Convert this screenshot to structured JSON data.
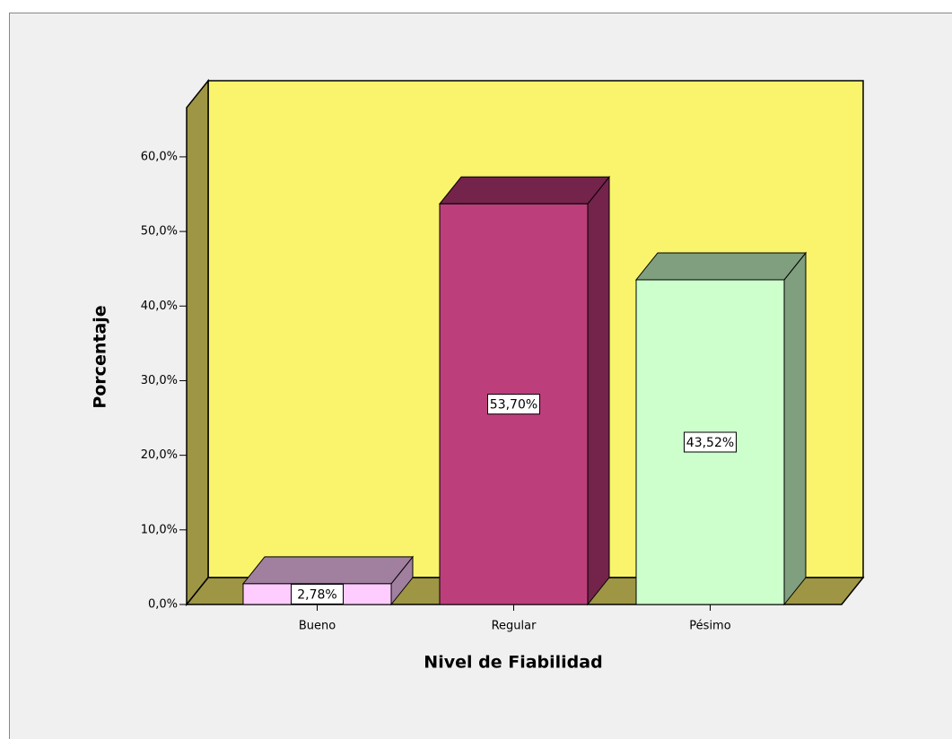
{
  "chart_data": {
    "type": "bar3d",
    "categories": [
      "Bueno",
      "Regular",
      "Pésimo"
    ],
    "values": [
      2.78,
      53.7,
      43.52
    ],
    "value_labels": [
      "2,78%",
      "53,70%",
      "43,52%"
    ],
    "colors": [
      "#ffccff",
      "#bc3f7c",
      "#ccffcc"
    ],
    "shade_colors": [
      "#a07f9f",
      "#74234b",
      "#7f9f7f"
    ],
    "xlabel": "Nivel de Fiabilidad",
    "ylabel": "Porcentaje",
    "ylim": [
      0,
      66.6
    ],
    "yticks": [
      {
        "value": 0,
        "label": "0,0%"
      },
      {
        "value": 10,
        "label": "10,0%"
      },
      {
        "value": 20,
        "label": "20,0%"
      },
      {
        "value": 30,
        "label": "30,0%"
      },
      {
        "value": 40,
        "label": "40,0%"
      },
      {
        "value": 50,
        "label": "50,0%"
      },
      {
        "value": 60,
        "label": "60,0%"
      }
    ],
    "wall_color": "#f9f46c",
    "floor_color": "#9e9644"
  }
}
